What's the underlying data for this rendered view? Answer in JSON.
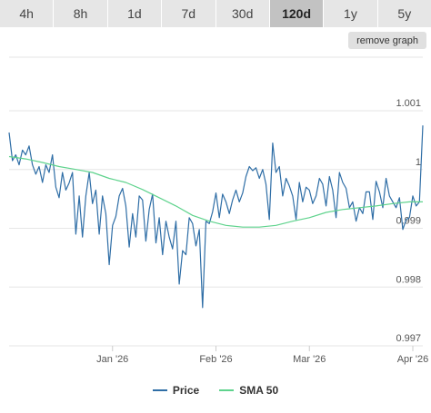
{
  "range_tabs": [
    {
      "label": "4h",
      "active": false
    },
    {
      "label": "8h",
      "active": false
    },
    {
      "label": "1d",
      "active": false
    },
    {
      "label": "7d",
      "active": false
    },
    {
      "label": "30d",
      "active": false
    },
    {
      "label": "120d",
      "active": true
    },
    {
      "label": "1y",
      "active": false
    },
    {
      "label": "5y",
      "active": false
    }
  ],
  "remove_graph_label": "remove graph",
  "colors": {
    "price": "#2f6ea6",
    "sma": "#5fd38d",
    "grid": "#e6e6e6"
  },
  "legend": {
    "price_label": "Price",
    "sma_label": "SMA 50"
  },
  "chart_data": {
    "type": "line",
    "x_tick_labels": [
      "Jan '26",
      "Feb '26",
      "Mar '26",
      "Apr '26"
    ],
    "y_tick_labels": [
      "0.997",
      "0.998",
      "0.999",
      "1",
      "1.001"
    ],
    "ylim": [
      0.997,
      1.001
    ],
    "y_ticks": [
      0.997,
      0.998,
      0.999,
      1.0,
      1.001
    ],
    "x_ticks_days": [
      31,
      62,
      90,
      121
    ],
    "xlim_days": [
      0,
      124
    ],
    "grid": "horizontal",
    "legend_position": "bottom",
    "series": [
      {
        "name": "Price",
        "x_days": [
          0,
          1,
          2,
          3,
          4,
          5,
          6,
          7,
          8,
          9,
          10,
          11,
          12,
          13,
          14,
          15,
          16,
          17,
          18,
          19,
          20,
          21,
          22,
          23,
          24,
          25,
          26,
          27,
          28,
          29,
          30,
          31,
          32,
          33,
          34,
          35,
          36,
          37,
          38,
          39,
          40,
          41,
          42,
          43,
          44,
          45,
          46,
          47,
          48,
          49,
          50,
          51,
          52,
          53,
          54,
          55,
          56,
          57,
          58,
          59,
          60,
          61,
          62,
          63,
          64,
          65,
          66,
          67,
          68,
          69,
          70,
          71,
          72,
          73,
          74,
          75,
          76,
          77,
          78,
          79,
          80,
          81,
          82,
          83,
          84,
          85,
          86,
          87,
          88,
          89,
          90,
          91,
          92,
          93,
          94,
          95,
          96,
          97,
          98,
          99,
          100,
          101,
          102,
          103,
          104,
          105,
          106,
          107,
          108,
          109,
          110,
          111,
          112,
          113,
          114,
          115,
          116,
          117,
          118,
          119,
          120,
          121,
          122,
          123,
          124
        ],
        "values": [
          1.00063,
          1.00015,
          1.00025,
          1.00008,
          1.00033,
          1.00025,
          1.0004,
          1.00008,
          0.99992,
          1.00005,
          0.99978,
          1.00008,
          0.99995,
          1.00025,
          0.9997,
          0.99952,
          0.99995,
          0.99965,
          0.99977,
          0.99995,
          0.9989,
          0.99955,
          0.99885,
          0.99955,
          0.99995,
          0.99942,
          0.99965,
          0.9989,
          0.99955,
          0.99925,
          0.99838,
          0.99905,
          0.9992,
          0.99955,
          0.99968,
          0.99938,
          0.99868,
          0.99925,
          0.99885,
          0.99955,
          0.99948,
          0.99878,
          0.99932,
          0.99958,
          0.99875,
          0.99918,
          0.99855,
          0.99912,
          0.99885,
          0.99865,
          0.99912,
          0.99805,
          0.99862,
          0.99855,
          0.99918,
          0.99908,
          0.9987,
          0.99898,
          0.99765,
          0.99912,
          0.99908,
          0.99928,
          0.9996,
          0.99918,
          0.99958,
          0.99945,
          0.99925,
          0.99948,
          0.99965,
          0.99945,
          0.9996,
          0.99988,
          1.00005,
          0.99998,
          1.00003,
          0.99985,
          1.0,
          0.99975,
          0.99915,
          1.00045,
          0.99995,
          1.00005,
          0.99955,
          0.99985,
          0.99972,
          0.99955,
          0.99915,
          0.99978,
          0.99945,
          0.9997,
          0.99965,
          0.99942,
          0.99955,
          0.99985,
          0.99975,
          0.99938,
          0.99988,
          0.99965,
          0.99918,
          0.99995,
          0.99978,
          0.99968,
          0.99935,
          0.99945,
          0.99912,
          0.99935,
          0.99925,
          0.99962,
          0.99962,
          0.99915,
          0.9998,
          0.99962,
          0.99935,
          0.99985,
          0.99955,
          0.99945,
          0.99935,
          0.99952,
          0.99898,
          0.99915,
          0.99918,
          0.99955,
          0.99938,
          0.99945,
          1.00075
        ]
      },
      {
        "name": "SMA 50",
        "x_days": [
          0,
          5,
          10,
          15,
          20,
          25,
          30,
          35,
          40,
          45,
          50,
          55,
          60,
          65,
          70,
          75,
          80,
          85,
          90,
          95,
          100,
          105,
          110,
          115,
          120,
          124
        ],
        "values": [
          1.00022,
          1.00018,
          1.00012,
          1.00005,
          1.0,
          0.99995,
          0.99985,
          0.99978,
          0.99966,
          0.99952,
          0.99938,
          0.99922,
          0.99912,
          0.99905,
          0.99902,
          0.99902,
          0.99905,
          0.99912,
          0.99918,
          0.99927,
          0.99932,
          0.99935,
          0.99938,
          0.99942,
          0.99945,
          0.99945
        ]
      }
    ]
  }
}
